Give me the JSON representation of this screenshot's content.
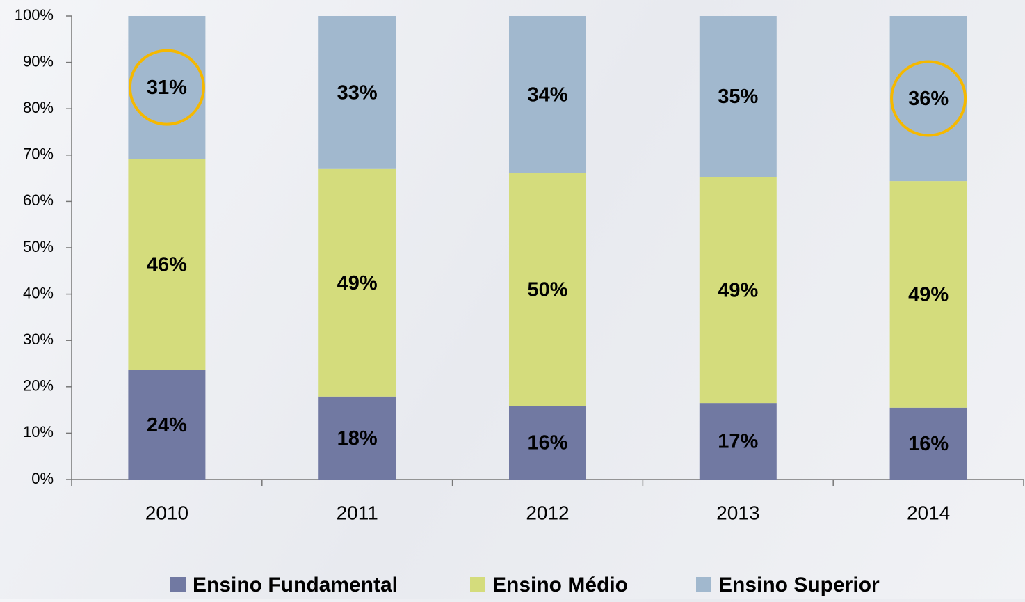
{
  "chart_data": {
    "type": "stacked_bar",
    "categories": [
      "2010",
      "2011",
      "2012",
      "2013",
      "2014"
    ],
    "series": [
      {
        "name": "Ensino Fundamental",
        "color": "#7179a2",
        "values": [
          23.6,
          17.9,
          15.9,
          16.5,
          15.5
        ],
        "value_labels": [
          "24%",
          "18%",
          "16%",
          "17%",
          "16%"
        ]
      },
      {
        "name": "Ensino Médio",
        "color": "#d4dc7c",
        "values": [
          45.6,
          49.1,
          50.2,
          48.8,
          48.9
        ],
        "value_labels": [
          "46%",
          "49%",
          "50%",
          "49%",
          "49%"
        ]
      },
      {
        "name": "Ensino Superior",
        "color": "#a1b8ce",
        "values": [
          30.8,
          33.0,
          33.9,
          34.7,
          35.6
        ],
        "value_labels": [
          "31%",
          "33%",
          "34%",
          "35%",
          "36%"
        ]
      }
    ],
    "ylim": [
      0,
      100
    ],
    "yticks": [
      {
        "value": 0,
        "label": "0%"
      },
      {
        "value": 10,
        "label": "10%"
      },
      {
        "value": 20,
        "label": "20%"
      },
      {
        "value": 30,
        "label": "30%"
      },
      {
        "value": 40,
        "label": "40%"
      },
      {
        "value": 50,
        "label": "50%"
      },
      {
        "value": 60,
        "label": "60%"
      },
      {
        "value": 70,
        "label": "70%"
      },
      {
        "value": 80,
        "label": "80%"
      },
      {
        "value": 90,
        "label": "90%"
      },
      {
        "value": 100,
        "label": "100%"
      }
    ],
    "highlight": {
      "series": 2,
      "indices": [
        0,
        4
      ],
      "color": "#f5b800"
    },
    "legend": "bottom"
  }
}
